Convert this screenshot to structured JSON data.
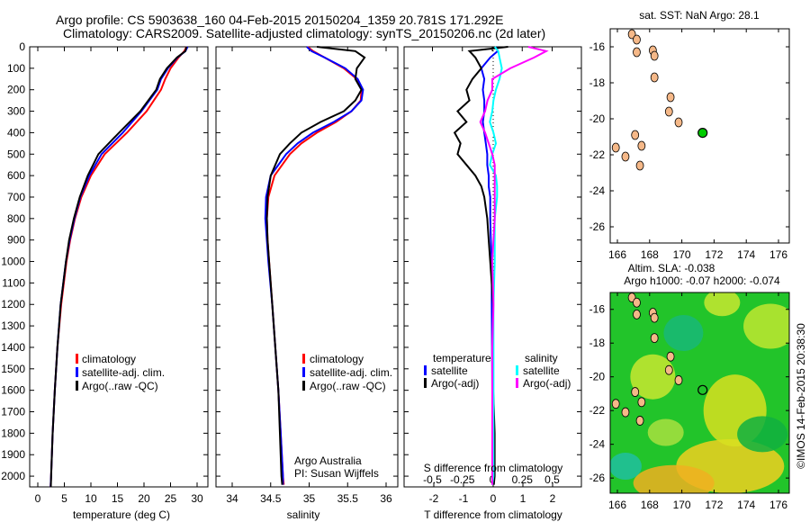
{
  "title_line1": "Argo profile: CS 5903638_160 04-Feb-2015 20150204_1359 20.781S 171.292E",
  "title_line2": "Climatology: CARS2009. Satellite-adjusted climatology: synTS_20150206.nc (2d later)",
  "colors": {
    "climatology": "#ff0000",
    "satellite": "#0000ff",
    "argo": "#000000",
    "sal_satellite": "#00ffff",
    "sal_argo": "#ff00ff"
  },
  "chart_data": [
    {
      "type": "line",
      "name": "temperature",
      "xlabel": "temperature (deg C)",
      "ylabel": "",
      "xlim": [
        -2,
        31
      ],
      "ylim": [
        2050,
        0
      ],
      "xticks": [
        "0",
        "5",
        "10",
        "15",
        "20",
        "25",
        "30"
      ],
      "xtick_values": [
        0,
        5,
        10,
        15,
        20,
        25,
        30
      ],
      "yticks": [
        "0",
        "100",
        "200",
        "300",
        "400",
        "500",
        "600",
        "700",
        "800",
        "900",
        "1000",
        "1100",
        "1200",
        "1300",
        "1400",
        "1500",
        "1600",
        "1700",
        "1800",
        "1900",
        "2000"
      ],
      "depth": [
        0,
        20,
        50,
        100,
        150,
        200,
        300,
        400,
        500,
        600,
        700,
        800,
        900,
        1000,
        1200,
        1400,
        1600,
        1800,
        2000,
        2050
      ],
      "series": [
        {
          "name": "climatology",
          "color": "#ff0000",
          "values": [
            28,
            27.6,
            26.5,
            25,
            24,
            23.2,
            20.5,
            16.8,
            12.6,
            10,
            8.2,
            7,
            6.1,
            5.4,
            4.4,
            3.7,
            3.2,
            2.8,
            2.5,
            2.4
          ]
        },
        {
          "name": "satellite-adj. clim.",
          "color": "#0000ff",
          "values": [
            28.2,
            27.8,
            26.3,
            24.5,
            23.2,
            22.5,
            19.5,
            16,
            12,
            9.7,
            8,
            6.9,
            6,
            5.3,
            4.3,
            3.7,
            3.2,
            2.8,
            2.5,
            2.4
          ]
        },
        {
          "name": "Argo(..raw -QC)",
          "color": "#000000",
          "values": [
            28,
            27.8,
            26.2,
            24.3,
            23,
            22.3,
            19.3,
            15.3,
            11.4,
            9.4,
            7.9,
            6.8,
            5.9,
            5.3,
            4.3,
            3.7,
            3.2,
            2.8,
            2.5,
            2.45
          ]
        }
      ],
      "legend": [
        "climatology",
        "satellite-adj. clim.",
        "Argo(..raw -QC)"
      ],
      "legend_position": "lower-center"
    },
    {
      "type": "line",
      "name": "salinity",
      "xlabel": "salinity",
      "xlim": [
        33.8,
        36.05
      ],
      "ylim": [
        2050,
        0
      ],
      "xticks": [
        "34",
        "34.5",
        "35",
        "35.5",
        "36"
      ],
      "xtick_values": [
        34,
        34.5,
        35,
        35.5,
        36
      ],
      "depth": [
        0,
        20,
        50,
        100,
        150,
        200,
        250,
        300,
        350,
        400,
        450,
        500,
        600,
        700,
        800,
        900,
        1000,
        1200,
        1400,
        1600,
        1800,
        2000,
        2040
      ],
      "series": [
        {
          "name": "climatology",
          "color": "#ff0000",
          "values": [
            34.98,
            35.05,
            35.2,
            35.45,
            35.62,
            35.68,
            35.67,
            35.55,
            35.35,
            35.1,
            34.9,
            34.75,
            34.55,
            34.47,
            34.45,
            34.46,
            34.48,
            34.52,
            34.56,
            34.6,
            34.63,
            34.66,
            34.67
          ]
        },
        {
          "name": "satellite-adj. clim.",
          "color": "#0000ff",
          "values": [
            34.97,
            35.03,
            35.2,
            35.47,
            35.63,
            35.7,
            35.68,
            35.55,
            35.32,
            35.05,
            34.85,
            34.7,
            34.5,
            34.44,
            34.43,
            34.45,
            34.47,
            34.52,
            34.56,
            34.6,
            34.63,
            34.66,
            34.66
          ]
        },
        {
          "name": "Argo(..raw -QC)",
          "color": "#000000",
          "values": [
            35.1,
            35.6,
            35.72,
            35.62,
            35.6,
            35.68,
            35.6,
            35.45,
            35.15,
            34.9,
            34.75,
            34.62,
            34.5,
            34.46,
            34.45,
            34.46,
            34.48,
            34.52,
            34.56,
            34.6,
            34.62,
            34.64,
            34.65
          ]
        }
      ],
      "legend": [
        "climatology",
        "satellite-adj. clim.",
        "Argo(..raw -QC)"
      ],
      "annotation": [
        "Argo Australia",
        "PI: Susan Wijffels"
      ]
    },
    {
      "type": "line",
      "name": "difference",
      "xlabel": "T difference from climatology",
      "x2label": "S difference from climatology",
      "xlim": [
        -3,
        3
      ],
      "ylim": [
        2050,
        0
      ],
      "xticks": [
        "-2",
        "-1",
        "0",
        "1",
        "2"
      ],
      "xtick_values": [
        -2,
        -1,
        0,
        1,
        2
      ],
      "x2ticks": [
        "-0.5",
        "-0.25",
        "0",
        "0.25",
        "0.5"
      ],
      "x2tick_values": [
        -0.5,
        -0.25,
        0,
        0.25,
        0.5
      ],
      "depth": [
        0,
        20,
        50,
        100,
        150,
        200,
        250,
        300,
        350,
        400,
        450,
        500,
        550,
        600,
        650,
        700,
        800,
        900,
        1000,
        1200,
        1400,
        1600,
        1800,
        2000,
        2040
      ],
      "series": [
        {
          "name": "temperature satellite",
          "axis": "T",
          "color": "#0000ff",
          "values": [
            0.1,
            0.15,
            -0.1,
            -0.4,
            -0.3,
            -0.35,
            -0.3,
            -0.3,
            -0.35,
            -0.3,
            -0.25,
            -0.2,
            -0.2,
            -0.15,
            -0.15,
            -0.1,
            -0.1,
            -0.08,
            -0.05,
            -0.05,
            -0.04,
            -0.03,
            -0.02,
            -0.02,
            -0.02
          ]
        },
        {
          "name": "temperature Argo(-adj)",
          "axis": "T",
          "color": "#000000",
          "values": [
            0.5,
            -0.8,
            -0.6,
            -0.4,
            -0.7,
            -0.9,
            -0.8,
            -1.2,
            -0.9,
            -1.3,
            -1.1,
            -1.2,
            -0.9,
            -0.6,
            -0.4,
            -0.3,
            -0.2,
            -0.15,
            -0.1,
            0,
            0,
            0,
            0.05,
            0.05,
            0.02
          ]
        },
        {
          "name": "salinity satellite",
          "axis": "S",
          "color": "#00ffff",
          "values": [
            0.02,
            0.05,
            0.06,
            0.08,
            0.06,
            0.03,
            0.01,
            0,
            -0.02,
            0.01,
            0.03,
            0,
            -0.02,
            0.03,
            0.04,
            0.04,
            0.02,
            0.02,
            0.02,
            0.01,
            0.01,
            0.01,
            0.01,
            0.01,
            0
          ]
        },
        {
          "name": "salinity Argo(-adj)",
          "axis": "S",
          "color": "#ff00ff",
          "values": [
            0.3,
            0.45,
            0.35,
            0.15,
            0,
            0,
            -0.04,
            -0.06,
            -0.1,
            -0.06,
            -0.03,
            0,
            0.02,
            0.02,
            0.02,
            0.02,
            0.02,
            0.01,
            0,
            0.01,
            0,
            0,
            0,
            0,
            0
          ]
        }
      ],
      "legend": {
        "temperature_title": "temperature",
        "salinity_title": "salinity",
        "t_satellite": "satellite",
        "t_argo": "Argo(-adj)",
        "s_satellite": "satellite",
        "s_argo": "Argo(-adj)"
      }
    },
    {
      "type": "map",
      "name": "sst-map",
      "title": "sat. SST: NaN Argo: 28.1",
      "lonlim": [
        165.7,
        176.7
      ],
      "latlim": [
        -26.9,
        -15
      ],
      "xticks": [
        "166",
        "168",
        "170",
        "172",
        "174",
        "176"
      ],
      "xtick_values": [
        166,
        168,
        170,
        172,
        174,
        176
      ],
      "yticks": [
        "-16",
        "-18",
        "-20",
        "-22",
        "-24",
        "-26"
      ],
      "ytick_values": [
        -16,
        -18,
        -20,
        -22,
        -24,
        -26
      ],
      "marker": {
        "lon": 171.29,
        "lat": -20.78,
        "color": "#00cc00"
      }
    },
    {
      "type": "map",
      "name": "sla-map",
      "title": "Altim. SLA: -0.038",
      "subtitle": "Argo h1000: -0.07 h2000: -0.074",
      "lonlim": [
        165.7,
        176.7
      ],
      "latlim": [
        -26.9,
        -15
      ],
      "xticks": [
        "166",
        "168",
        "170",
        "172",
        "174",
        "176"
      ],
      "xtick_values": [
        166,
        168,
        170,
        172,
        174,
        176
      ],
      "yticks": [
        "-16",
        "-18",
        "-20",
        "-22",
        "-24",
        "-26"
      ],
      "ytick_values": [
        -16,
        -18,
        -20,
        -22,
        -24,
        -26
      ],
      "marker": {
        "lon": 171.29,
        "lat": -20.78,
        "color": "#000000"
      }
    }
  ],
  "credit": "©IMOS 14-Feb-2015 20:38:30"
}
